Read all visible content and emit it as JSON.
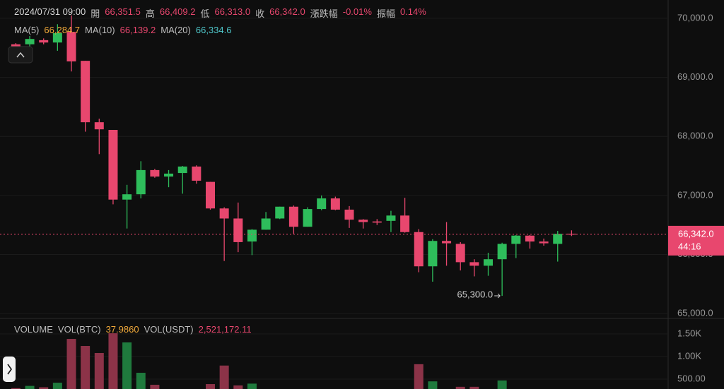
{
  "chart_data": {
    "type": "candlestick",
    "header": [
      {
        "label": "2024/07/31 09:00",
        "color": "#d8d8d8"
      },
      {
        "label": "開",
        "value": "66,351.5",
        "color": "#e8476e"
      },
      {
        "label": "高",
        "value": "66,409.2",
        "color": "#e8476e"
      },
      {
        "label": "低",
        "value": "66,313.0",
        "color": "#e8476e"
      },
      {
        "label": "收",
        "value": "66,342.0",
        "color": "#e8476e"
      },
      {
        "label": "漲跌幅",
        "value": "-0.01%",
        "color": "#e8476e"
      },
      {
        "label": "振幅",
        "value": "0.14%",
        "color": "#e8476e"
      }
    ],
    "ma": [
      {
        "label": "MA(5)",
        "value": "66,284.7",
        "color": "#f0a93a"
      },
      {
        "label": "MA(10)",
        "value": "66,139.2",
        "color": "#e8476e"
      },
      {
        "label": "MA(20)",
        "value": "66,334.6",
        "color": "#4fc6c9"
      }
    ],
    "up_color": "#2ebd5b",
    "down_color": "#e8476e",
    "open": [
      69560,
      69560,
      69630,
      69590,
      69770,
      69280,
      68240,
      68110,
      66930,
      67020,
      67430,
      67320,
      67380,
      67490,
      67230,
      66780,
      66610,
      66220,
      66420,
      66610,
      66810,
      66470,
      66770,
      66950,
      66760,
      66590,
      66560,
      66570,
      66660,
      66380,
      65800,
      66230,
      66180,
      65870,
      65810,
      65920,
      66180,
      66320,
      66220,
      66180,
      66351.5
    ],
    "high": [
      69580,
      69700,
      69660,
      69900,
      70050,
      69280,
      68300,
      68110,
      67180,
      67580,
      67450,
      67430,
      67500,
      67510,
      67230,
      66800,
      66880,
      66430,
      66720,
      66810,
      66830,
      66800,
      67000,
      66980,
      66820,
      66600,
      66600,
      66740,
      66960,
      66430,
      66260,
      66550,
      66210,
      65920,
      66030,
      66200,
      66330,
      66330,
      66270,
      66400,
      66409.2
    ],
    "low": [
      69490,
      69380,
      69560,
      69450,
      69100,
      68080,
      67700,
      66850,
      66440,
      66950,
      67300,
      67140,
      67030,
      67200,
      66760,
      65890,
      66040,
      65990,
      66420,
      66600,
      66350,
      66470,
      66750,
      66750,
      66450,
      66440,
      66500,
      66380,
      66370,
      65700,
      65540,
      65810,
      65730,
      65630,
      65640,
      65300,
      65940,
      66100,
      66150,
      65880,
      66313
    ],
    "close": [
      69510,
      69650,
      69590,
      69750,
      69270,
      68240,
      68120,
      66930,
      67020,
      67430,
      67320,
      67370,
      67490,
      67250,
      66780,
      66610,
      66210,
      66420,
      66610,
      66810,
      66470,
      66770,
      66950,
      66760,
      66590,
      66550,
      66540,
      66660,
      66380,
      65800,
      66230,
      66190,
      65870,
      65810,
      65920,
      66180,
      66320,
      66220,
      66190,
      66350,
      66342
    ],
    "ylim": [
      64930,
      70310
    ],
    "yticks": [
      {
        "value": 70000,
        "label": "70,000.0"
      },
      {
        "value": 69000,
        "label": "69,000.0"
      },
      {
        "value": 68000,
        "label": "68,000.0"
      },
      {
        "value": 67000,
        "label": "67,000.0"
      },
      {
        "value": 66000,
        "label": "66,000.0"
      },
      {
        "value": 65000,
        "label": "65,000.0"
      }
    ],
    "last_price": {
      "value": 66342,
      "label": "66,342.0",
      "countdown": "44:16"
    },
    "annotations": [
      {
        "value": 65300,
        "label": "65,300.0",
        "index": 35
      }
    ],
    "volume": {
      "title": "VOLUME",
      "items": [
        {
          "label": "VOL(BTC)",
          "value": "37.9860",
          "color": "#f0a93a"
        },
        {
          "label": "VOL(USDT)",
          "value": "2,521,172.11",
          "color": "#e8476e"
        }
      ],
      "values": [
        300,
        350,
        320,
        420,
        1390,
        1234,
        1078,
        1515,
        1312,
        640,
        375,
        250,
        220,
        260,
        390,
        800,
        360,
        400,
        250,
        230,
        220,
        260,
        200,
        210,
        230,
        180,
        150,
        200,
        270,
        830,
        450,
        270,
        330,
        330,
        260,
        470,
        250,
        180,
        160,
        220,
        60
      ],
      "up_color": "#1f7a3d",
      "down_color": "#8c3348",
      "ylim": [
        281,
        1781
      ],
      "yticks": [
        {
          "value": 1500,
          "label": "1.50K"
        },
        {
          "value": 1000,
          "label": "1.00K"
        },
        {
          "value": 500,
          "label": "500.00"
        }
      ]
    }
  }
}
